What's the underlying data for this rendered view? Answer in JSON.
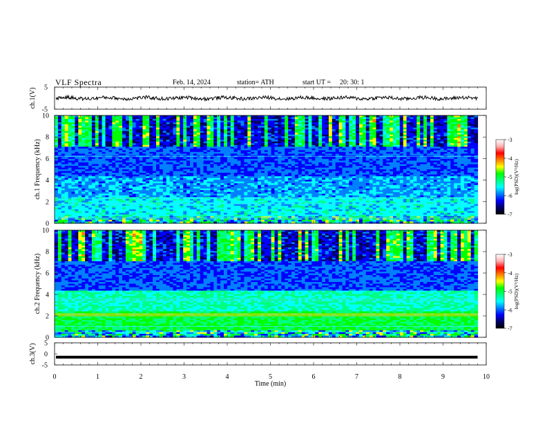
{
  "header": {
    "title": "VLF  Spectra",
    "date": "Feb. 14, 2024",
    "station": "station= ATH",
    "start_label": "start  UT  =",
    "start_time": "20: 30: 1"
  },
  "colors": {
    "colormap": [
      "#000000",
      "#000066",
      "#0000ff",
      "#0080ff",
      "#00ffff",
      "#00ff80",
      "#00ff00",
      "#ffff00",
      "#ff8000",
      "#ff0000",
      "#ffb0b0",
      "#ffffff"
    ],
    "trace": "#000000"
  },
  "chart_data": [
    {
      "type": "line",
      "panel": "ch1-waveform",
      "ylabel": "ch.1(V)",
      "ylim": [
        -5,
        5
      ],
      "yticks": [
        "5",
        "-5"
      ],
      "x_range_min": [
        0,
        9.8
      ],
      "description_values": "amplitude trace near 0 V with small fluctuations"
    },
    {
      "type": "heatmap",
      "panel": "ch1-spectrogram",
      "ylabel": "ch.1 Frequency  (kHz)",
      "ylim": [
        0,
        10
      ],
      "yticks": [
        "0",
        "2",
        "4",
        "6",
        "8",
        "10"
      ],
      "colorbar_label": "log(PSD)(V²/Hz)",
      "colorbar_ticks": [
        "-3",
        "-4",
        "-5",
        "-6",
        "-7"
      ],
      "colorbar_range": [
        -7,
        -3
      ]
    },
    {
      "type": "heatmap",
      "panel": "ch2-spectrogram",
      "ylabel": "ch.2 Frequency  (kHz)",
      "ylim": [
        0,
        10
      ],
      "yticks": [
        "0",
        "2",
        "4",
        "6",
        "8",
        "10"
      ],
      "colorbar_label": "log(PSD)(V²/Hz)",
      "colorbar_ticks": [
        "-3",
        "-4",
        "-5",
        "-6",
        "-7"
      ],
      "colorbar_range": [
        -7,
        -3
      ]
    },
    {
      "type": "line",
      "panel": "ch3-waveform",
      "ylabel": "ch.3(V)",
      "ylim": [
        -5,
        5
      ],
      "yticks": [
        "5",
        "0",
        "-5"
      ],
      "constant_value": -1.5
    }
  ],
  "x_axis": {
    "label": "Time  (min)",
    "range": [
      0,
      10
    ],
    "ticks": [
      "0",
      "1",
      "2",
      "3",
      "4",
      "5",
      "6",
      "7",
      "8",
      "9",
      "10"
    ]
  }
}
